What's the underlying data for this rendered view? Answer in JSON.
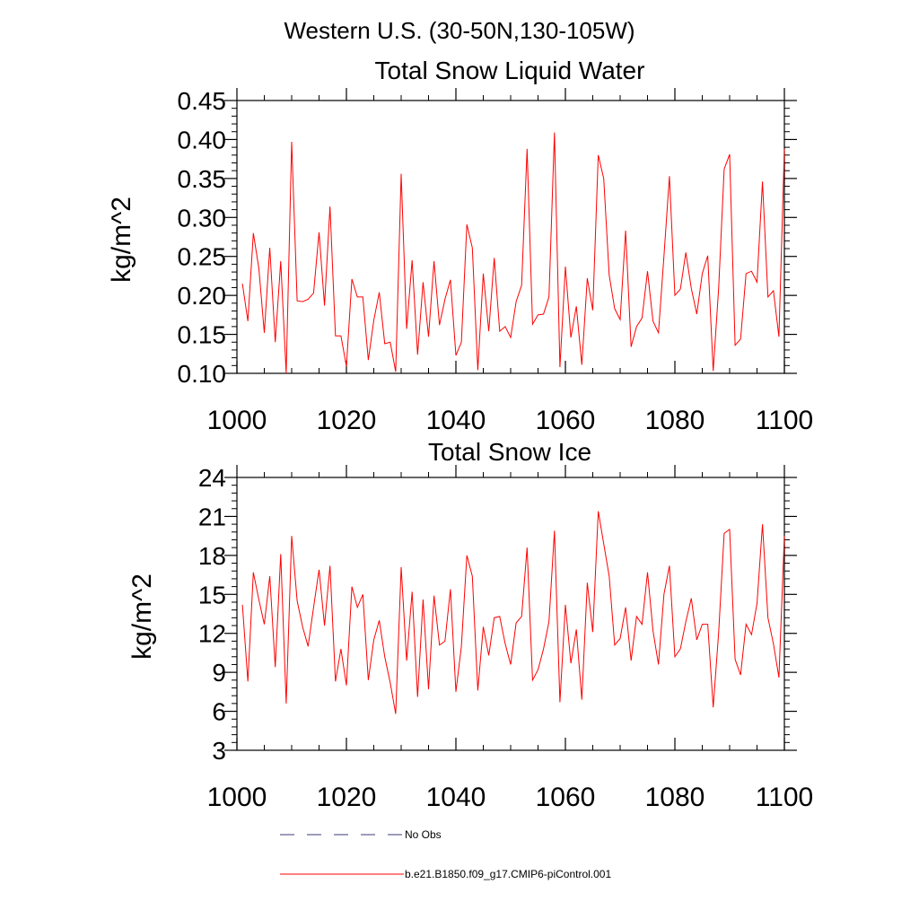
{
  "suptitle": "Western U.S. (30-50N,130-105W)",
  "colors": {
    "model": "#ff0000",
    "obs": "#3a3a7a",
    "axis": "#000000"
  },
  "legend": {
    "items": [
      {
        "label": "No Obs",
        "style": "dashed",
        "color": "#3a3a7a"
      },
      {
        "label": "b.e21.B1850.f09_g17.CMIP6-piControl.001",
        "style": "solid",
        "color": "#ff0000"
      }
    ]
  },
  "chart_data": [
    {
      "type": "line",
      "title": "Total Snow Liquid Water",
      "xlabel": "",
      "ylabel": "kg/m^2",
      "xlim": [
        1000,
        1100
      ],
      "ylim": [
        0.1,
        0.45
      ],
      "x_ticks": [
        1000,
        1020,
        1040,
        1060,
        1080,
        1100
      ],
      "x_tick_labels": [
        "1000",
        "1020",
        "1040",
        "1060",
        "1080",
        "1100"
      ],
      "y_ticks": [
        0.1,
        0.15,
        0.2,
        0.25,
        0.3,
        0.35,
        0.4,
        0.45
      ],
      "y_tick_labels": [
        "0.10",
        "0.15",
        "0.20",
        "0.25",
        "0.30",
        "0.35",
        "0.40",
        "0.45"
      ],
      "series": [
        {
          "name": "b.e21.B1850.f09_g17.CMIP6-piControl.001",
          "x_start": 1001,
          "x_step": 1,
          "values": [
            0.215,
            0.167,
            0.28,
            0.235,
            0.152,
            0.261,
            0.14,
            0.244,
            0.1,
            0.397,
            0.193,
            0.192,
            0.195,
            0.203,
            0.281,
            0.187,
            0.314,
            0.148,
            0.148,
            0.109,
            0.221,
            0.198,
            0.198,
            0.117,
            0.168,
            0.204,
            0.138,
            0.14,
            0.102,
            0.356,
            0.157,
            0.245,
            0.124,
            0.217,
            0.147,
            0.244,
            0.162,
            0.195,
            0.22,
            0.123,
            0.14,
            0.291,
            0.261,
            0.104,
            0.228,
            0.154,
            0.248,
            0.154,
            0.16,
            0.146,
            0.192,
            0.213,
            0.388,
            0.163,
            0.175,
            0.176,
            0.198,
            0.409,
            0.108,
            0.237,
            0.146,
            0.186,
            0.111,
            0.222,
            0.181,
            0.38,
            0.35,
            0.226,
            0.183,
            0.169,
            0.283,
            0.134,
            0.16,
            0.171,
            0.231,
            0.167,
            0.152,
            0.25,
            0.353,
            0.2,
            0.208,
            0.255,
            0.209,
            0.176,
            0.228,
            0.251,
            0.103,
            0.21,
            0.362,
            0.381,
            0.136,
            0.144,
            0.228,
            0.231,
            0.217,
            0.346,
            0.198,
            0.206,
            0.147,
            0.388
          ]
        }
      ]
    },
    {
      "type": "line",
      "title": "Total Snow Ice",
      "xlabel": "",
      "ylabel": "kg/m^2",
      "xlim": [
        1000,
        1100
      ],
      "ylim": [
        3,
        24
      ],
      "x_ticks": [
        1000,
        1020,
        1040,
        1060,
        1080,
        1100
      ],
      "x_tick_labels": [
        "1000",
        "1020",
        "1040",
        "1060",
        "1080",
        "1100"
      ],
      "y_ticks": [
        3,
        6,
        9,
        12,
        15,
        18,
        21,
        24
      ],
      "y_tick_labels": [
        "3",
        "6",
        "9",
        "12",
        "15",
        "18",
        "21",
        "24"
      ],
      "series": [
        {
          "name": "b.e21.B1850.f09_g17.CMIP6-piControl.001",
          "x_start": 1001,
          "x_step": 1,
          "values": [
            14.2,
            8.3,
            16.7,
            14.6,
            12.7,
            16.4,
            9.4,
            18.1,
            6.6,
            19.5,
            14.5,
            12.5,
            11.0,
            14.0,
            16.9,
            12.6,
            17.2,
            8.3,
            10.8,
            8.0,
            15.6,
            14.0,
            15.0,
            8.4,
            11.5,
            13.0,
            10.2,
            8.2,
            5.8,
            17.1,
            9.9,
            15.2,
            7.1,
            14.6,
            7.7,
            14.9,
            11.1,
            11.4,
            15.4,
            7.5,
            11.0,
            18.0,
            16.4,
            7.6,
            12.5,
            10.3,
            13.2,
            13.3,
            11.2,
            9.6,
            12.8,
            13.3,
            18.6,
            8.4,
            9.2,
            10.8,
            12.9,
            19.9,
            6.7,
            14.2,
            9.7,
            12.3,
            6.9,
            15.9,
            12.1,
            21.4,
            18.9,
            16.4,
            11.1,
            11.6,
            14.0,
            9.9,
            13.3,
            12.7,
            16.7,
            12.2,
            9.6,
            15.0,
            17.2,
            10.2,
            10.8,
            12.9,
            14.7,
            11.5,
            12.7,
            12.7,
            6.3,
            12.1,
            19.7,
            20.0,
            10.0,
            8.8,
            12.7,
            11.9,
            14.3,
            20.4,
            13.2,
            11.2,
            8.6,
            19.5
          ]
        }
      ]
    }
  ]
}
